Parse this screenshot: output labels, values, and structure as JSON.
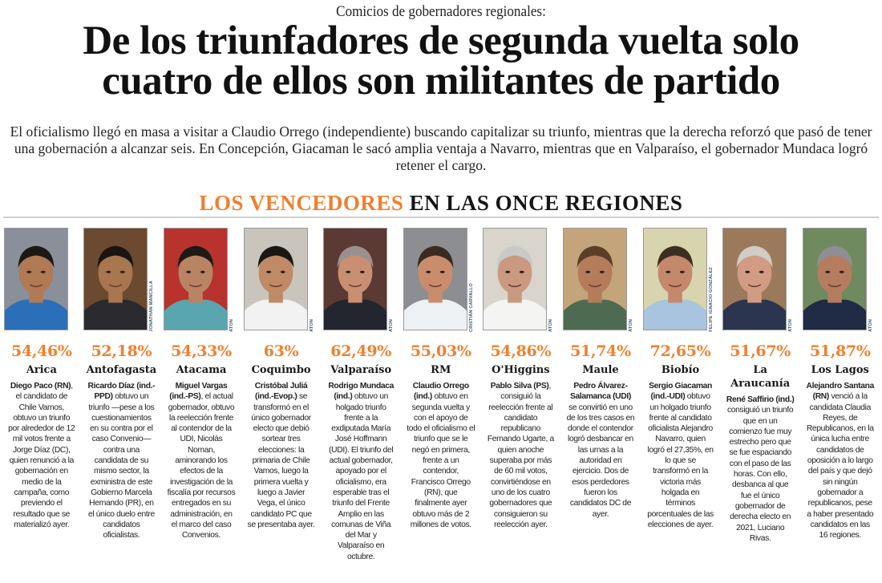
{
  "article": {
    "kicker": "Comicios de gobernadores regionales:",
    "headline_line1": "De los triunfadores de segunda vuelta solo",
    "headline_line2": "cuatro de ellos son militantes de partido",
    "deck": "El oficialismo llegó en masa a visitar a Claudio Orrego (independiente) buscando capitalizar su triunfo, mientras que la derecha reforzó que pasó de tener una gobernación a alcanzar seis. En Concepción, Giacaman le sacó amplia ventaja a Navarro, mientras que en Valparaíso, el gobernador Mundaca logró retener el cargo."
  },
  "section": {
    "title_accent": "LOS VENCEDORES",
    "title_rest": "EN LAS ONCE REGIONES",
    "accent_color": "#f07f2e"
  },
  "winners": [
    {
      "percent": "54,46%",
      "region": "Arica",
      "name": "Diego Paco (RN)",
      "text": ", el candidato de Chile Vamos, obtuvo un triunfo por alrededor de 12 mil votos frente a Jorge Díaz (DC), quien renunció a la gobernación en medio de la campaña, como previendo el resultado que se materializó ayer.",
      "credit": ""
    },
    {
      "percent": "52,18%",
      "region": "Antofagasta",
      "name": "Ricardo Díaz (ind.-PPD)",
      "text": " obtuvo un triunfo —pese a los cuestionamientos en su contra por el caso Convenio— contra una candidata de su mismo sector, la exministra de este Gobierno Marcela Hernando (PR), en el único duelo entre candidatos oficialistas.",
      "credit": "JONATHAN MANCILLA"
    },
    {
      "percent": "54,33%",
      "region": "Atacama",
      "name": "Miguel Vargas (ind.-PS)",
      "text": ", el actual gobernador, obtuvo la reelección frente al contendor de la UDI, Nicolás Noman, aminorando los efectos de la investigación de la fiscalía por recursos entregados en su administración, en el marco del caso Convenios.",
      "credit": "ATON"
    },
    {
      "percent": "63%",
      "region": "Coquimbo",
      "name": "Cristóbal Juliá (ind.-Evop.)",
      "text": " se transformó en el único gobernador electo que debió sortear tres elecciones: la primaria de Chile Vamos, luego la primera vuelta y luego a Javier Vega, el único candidato PC que se presentaba ayer.",
      "credit": "ATON"
    },
    {
      "percent": "62,49%",
      "region": "Valparaíso",
      "name": "Rodrigo Mundaca (ind.)",
      "text": " obtuvo un holgado triunfo frente a la exdiputada María José Hoffmann (UDI). El triunfo del actual gobernador, apoyado por el oficialismo, era esperable tras el triunfo del Frente Amplio en las comunas de Viña del Mar y Valparaíso en octubre.",
      "credit": "ATON"
    },
    {
      "percent": "55,03%",
      "region": "RM",
      "name": "Claudio Orrego (ind.)",
      "text": " obtuvo en segunda vuelta y con el apoyo de todo el oficialismo el triunfo que se le negó en primera, frente a un contendor, Francisco Orrego (RN), que finalmente ayer obtuvo más de 2 millones de votos.",
      "credit": "CRISTIÁN CARVALLO"
    },
    {
      "percent": "54,86%",
      "region": "O'Higgins",
      "name": "Pablo Silva (PS)",
      "text": ", consiguió la reelección frente al candidato republicano Fernando Ugarte, a quien anoche superaba por más de 60 mil votos, convirtiéndose en uno de los cuatro gobernadores que consiguieron su reelección ayer.",
      "credit": "ATON"
    },
    {
      "percent": "51,74%",
      "region": "Maule",
      "name": "Pedro Álvarez-Salamanca (UDI)",
      "text": " se convirtió en uno de los tres casos en donde el contendor logró desbancar en las urnas a la autoridad en ejercicio. Dos de esos perdedores fueron los candidatos DC de ayer.",
      "credit": "ATON"
    },
    {
      "percent": "72,65%",
      "region": "Biobío",
      "name": "Sergio Giacaman (ind.-UDI)",
      "text": " obtuvo un holgado triunfo frente al candidato oficialista Alejandro Navarro, quien logró el 27,35%, en lo que se transformó en la victoria más holgada en términos porcentuales de las elecciones de ayer.",
      "credit": "FELIPE IGNACIO GONZÁLEZ"
    },
    {
      "percent": "51,67%",
      "region": "La Araucanía",
      "name": "René Saffirio (ind.)",
      "text": " consiguió un triunfo que en un comienzo fue muy estrecho pero que se fue espaciando con el paso de las horas. Con ello, desbanca al que fue el único gobernador de derecha electo en 2021, Luciano Rivas.",
      "credit": "ATON"
    },
    {
      "percent": "51,87%",
      "region": "Los Lagos",
      "name": "Alejandro Santana (RN)",
      "text": " venció a la candidata Claudia Reyes, de Republicanos, en la única lucha entre candidatos de oposición a lo largo del país y que dejó sin ningún gobernador a republicanos, pese a haber presentado candidatos en las 16 regiones.",
      "credit": "ATON"
    }
  ],
  "photo_palettes": [
    {
      "bg": "#8a8f99",
      "skin": "#b07a55",
      "hair": "#1c1814",
      "shirt": "#2a6fb8"
    },
    {
      "bg": "#6b4a30",
      "skin": "#a8764f",
      "hair": "#1a1512",
      "shirt": "#2a2a2e"
    },
    {
      "bg": "#b8322e",
      "skin": "#b98463",
      "hair": "#1f1a17",
      "shirt": "#5aa6b0"
    },
    {
      "bg": "#c9c4bc",
      "skin": "#c08a66",
      "hair": "#1b1714",
      "shirt": "#f2f2f2"
    },
    {
      "bg": "#5b3a33",
      "skin": "#c88f72",
      "hair": "#9a9090",
      "shirt": "#23262e"
    },
    {
      "bg": "#8c8e92",
      "skin": "#c98d6e",
      "hair": "#3b2a20",
      "shirt": "#eef1f4"
    },
    {
      "bg": "#d9d5cc",
      "skin": "#c99a80",
      "hair": "#c9c9c9",
      "shirt": "#f4f4f2"
    },
    {
      "bg": "#c4a47a",
      "skin": "#b57c5c",
      "hair": "#5a3e28",
      "shirt": "#4d6b50"
    },
    {
      "bg": "#d8d4ad",
      "skin": "#c4896a",
      "hair": "#3d2e24",
      "shirt": "#a9c4de"
    },
    {
      "bg": "#9b7a5c",
      "skin": "#d29b84",
      "hair": "#d0ccc6",
      "shirt": "#2b3550"
    },
    {
      "bg": "#6f8a5e",
      "skin": "#b57d5f",
      "hair": "#8f8f93",
      "shirt": "#1f2a44"
    }
  ]
}
